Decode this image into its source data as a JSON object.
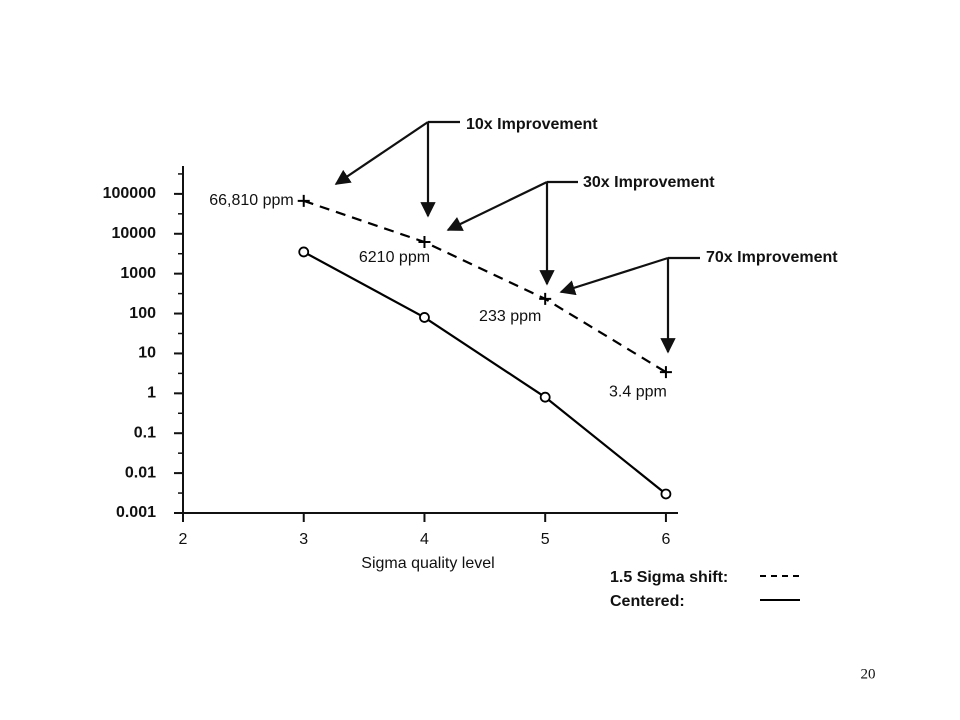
{
  "chart_data": {
    "type": "line",
    "xlabel": "Sigma quality level",
    "x": [
      3,
      4,
      5,
      6
    ],
    "xlim": [
      2,
      6.1
    ],
    "xticks": [
      2,
      3,
      4,
      5,
      6
    ],
    "ylim": [
      0.001,
      500000
    ],
    "yticks": [
      100000,
      10000,
      1000,
      100,
      10,
      1,
      0.1,
      0.01,
      0.001
    ],
    "log_y": true,
    "series": [
      {
        "name": "1.5 Sigma shift:",
        "color": "#000000",
        "dashed": true,
        "marker": "+",
        "values": [
          66810,
          6210,
          233,
          3.4
        ],
        "value_labels": [
          "66,810 ppm",
          "6210 ppm",
          "233 ppm",
          "3.4 ppm"
        ]
      },
      {
        "name": "Centered:",
        "color": "#000000",
        "dashed": false,
        "marker": "o",
        "values": [
          3500,
          80,
          0.8,
          0.003
        ]
      }
    ],
    "annotations": [
      "10x Improvement",
      "30x Improvement",
      "70x Improvement"
    ]
  },
  "page_number": "20"
}
